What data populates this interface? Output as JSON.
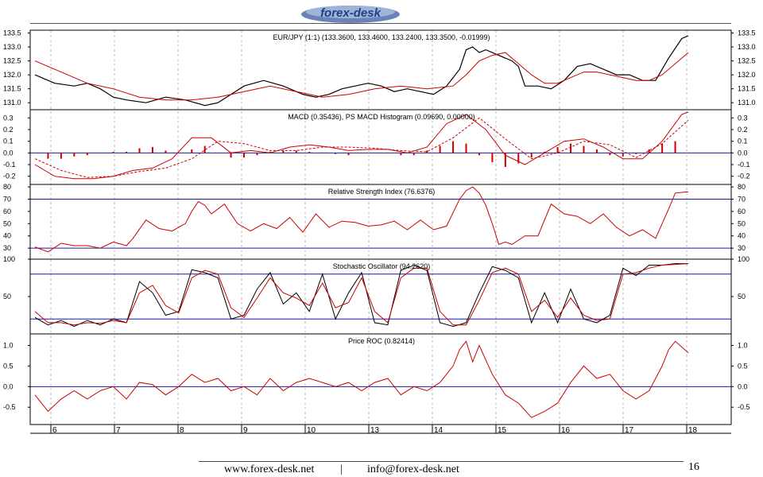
{
  "header": {
    "logo_text": "forex-desk"
  },
  "footer": {
    "website": "www.forex-desk.net",
    "separator": "|",
    "email": "info@forex-desk.net",
    "page_number": "16"
  },
  "colors": {
    "price": "#000000",
    "overlay": "#cc0000",
    "reference": "#1a1aa0",
    "frame": "#000000",
    "grid": "#9a9a9a"
  },
  "x_axis": {
    "ticks": [
      "6",
      "7",
      "8",
      "9",
      "10",
      "13",
      "14",
      "15",
      "16",
      "17",
      "18"
    ]
  },
  "chart_data": [
    {
      "type": "line",
      "title": "EUR/JPY (1:1) (133.3600, 133.4600, 133.2400, 133.3500, -0.01999)",
      "ylim": [
        130.75,
        133.6
      ],
      "yticks": [
        131.0,
        131.5,
        132.0,
        132.5,
        133.0,
        133.5
      ],
      "ytick_labels": [
        "131.0",
        "131.5",
        "132.0",
        "132.5",
        "133.0",
        "133.5"
      ],
      "series": [
        {
          "role": "price",
          "x": [
            0,
            3,
            6,
            8,
            10,
            12,
            14,
            17,
            20,
            23,
            26,
            28,
            30,
            32,
            35,
            38,
            41,
            43,
            45,
            47,
            49,
            51,
            53,
            55,
            57,
            59,
            61,
            63,
            65,
            66,
            67,
            68,
            69,
            71,
            73,
            74,
            75,
            77,
            79,
            81,
            83,
            85,
            87,
            89,
            91,
            93,
            95,
            97,
            99,
            100
          ],
          "y": [
            132.0,
            131.7,
            131.6,
            131.7,
            131.5,
            131.2,
            131.1,
            131.0,
            131.2,
            131.1,
            130.9,
            131.0,
            131.3,
            131.6,
            131.8,
            131.6,
            131.3,
            131.2,
            131.3,
            131.5,
            131.6,
            131.7,
            131.6,
            131.4,
            131.5,
            131.4,
            131.3,
            131.6,
            132.2,
            132.9,
            133.0,
            132.8,
            132.9,
            132.7,
            132.5,
            132.3,
            131.6,
            131.6,
            131.5,
            131.8,
            132.3,
            132.4,
            132.2,
            132.0,
            132.0,
            131.8,
            131.8,
            132.6,
            133.3,
            133.4
          ]
        },
        {
          "role": "moving-average",
          "x": [
            0,
            4,
            8,
            12,
            16,
            20,
            24,
            28,
            32,
            36,
            40,
            44,
            48,
            52,
            56,
            60,
            64,
            66,
            68,
            70,
            72,
            74,
            76,
            78,
            80,
            82,
            84,
            86,
            88,
            90,
            92,
            94,
            96,
            98,
            100
          ],
          "y": [
            132.5,
            132.1,
            131.7,
            131.5,
            131.2,
            131.1,
            131.1,
            131.2,
            131.4,
            131.6,
            131.4,
            131.2,
            131.3,
            131.5,
            131.6,
            131.5,
            131.6,
            132.0,
            132.5,
            132.7,
            132.8,
            132.4,
            132.0,
            131.7,
            131.7,
            131.9,
            132.1,
            132.1,
            132.0,
            131.9,
            131.8,
            131.8,
            132.0,
            132.4,
            132.8
          ]
        }
      ]
    },
    {
      "type": "line",
      "title": "MACD (0.35436), PS MACD Histogram (0.09690, 0.00000)",
      "ylim": [
        -0.27,
        0.37
      ],
      "yticks": [
        -0.2,
        -0.1,
        0.0,
        0.1,
        0.2,
        0.3
      ],
      "ytick_labels": [
        "-0.2",
        "-0.1",
        "0.0",
        "0.1",
        "0.2",
        "0.3"
      ],
      "reference_lines": [
        0.0
      ],
      "series": [
        {
          "role": "macd",
          "x": [
            0,
            3,
            6,
            9,
            12,
            15,
            18,
            21,
            24,
            27,
            30,
            33,
            36,
            39,
            42,
            45,
            48,
            51,
            54,
            57,
            60,
            63,
            66,
            69,
            72,
            75,
            78,
            81,
            84,
            87,
            90,
            93,
            96,
            99,
            100
          ],
          "y": [
            -0.1,
            -0.2,
            -0.22,
            -0.22,
            -0.2,
            -0.15,
            -0.13,
            -0.05,
            0.13,
            0.13,
            0.0,
            0.02,
            0.0,
            0.05,
            0.07,
            0.05,
            0.02,
            0.03,
            0.03,
            0.0,
            0.05,
            0.25,
            0.33,
            0.2,
            -0.02,
            -0.1,
            0.0,
            0.1,
            0.12,
            0.05,
            -0.05,
            -0.05,
            0.1,
            0.33,
            0.35
          ]
        },
        {
          "role": "signal",
          "x": [
            0,
            4,
            8,
            12,
            16,
            20,
            24,
            28,
            32,
            36,
            40,
            44,
            48,
            52,
            56,
            60,
            64,
            68,
            72,
            76,
            80,
            84,
            88,
            92,
            96,
            100
          ],
          "y": [
            -0.05,
            -0.15,
            -0.21,
            -0.2,
            -0.16,
            -0.13,
            -0.05,
            0.1,
            0.08,
            0.02,
            0.02,
            0.05,
            0.05,
            0.04,
            0.02,
            0.01,
            0.13,
            0.3,
            0.12,
            -0.05,
            0.0,
            0.1,
            0.07,
            -0.04,
            0.08,
            0.28
          ]
        },
        {
          "role": "histogram",
          "x": [
            2,
            4,
            6,
            8,
            10,
            12,
            14,
            16,
            18,
            20,
            22,
            24,
            26,
            28,
            30,
            32,
            34,
            36,
            38,
            40,
            42,
            44,
            46,
            48,
            50,
            52,
            54,
            56,
            58,
            60,
            62,
            64,
            66,
            68,
            70,
            72,
            74,
            76,
            78,
            80,
            82,
            84,
            86,
            88,
            90,
            92,
            94,
            96,
            98
          ],
          "y": [
            -0.05,
            -0.05,
            -0.03,
            -0.02,
            0.0,
            0.01,
            0.01,
            0.04,
            0.05,
            0.02,
            0.0,
            0.03,
            0.06,
            0.0,
            -0.04,
            -0.04,
            -0.02,
            0.01,
            0.02,
            0.02,
            0.01,
            0.0,
            -0.01,
            -0.02,
            0.0,
            0.0,
            0.0,
            -0.02,
            -0.02,
            0.02,
            0.06,
            0.1,
            0.08,
            -0.02,
            -0.08,
            -0.12,
            -0.09,
            -0.04,
            0.01,
            0.05,
            0.08,
            0.06,
            0.03,
            -0.02,
            -0.03,
            -0.01,
            0.03,
            0.08,
            0.1
          ]
        }
      ]
    },
    {
      "type": "line",
      "title": "Relative Strength Index (76.6376)",
      "ylim": [
        21,
        82
      ],
      "yticks": [
        30,
        40,
        50,
        60,
        70,
        80
      ],
      "ytick_labels": [
        "30",
        "40",
        "50",
        "60",
        "70",
        "80"
      ],
      "reference_lines": [
        30,
        70
      ],
      "series": [
        {
          "role": "rsi",
          "x": [
            0,
            2,
            4,
            6,
            8,
            10,
            12,
            14,
            15,
            17,
            19,
            21,
            23,
            24,
            25,
            26,
            27,
            29,
            31,
            33,
            35,
            37,
            39,
            41,
            43,
            45,
            47,
            49,
            51,
            53,
            55,
            57,
            59,
            61,
            63,
            65,
            66,
            67,
            68,
            69,
            70,
            71,
            72,
            73,
            75,
            77,
            79,
            81,
            83,
            85,
            87,
            89,
            91,
            93,
            95,
            97,
            98,
            100
          ],
          "y": [
            31,
            27,
            34,
            32,
            32,
            30,
            35,
            32,
            38,
            53,
            46,
            44,
            50,
            60,
            68,
            65,
            58,
            66,
            50,
            44,
            50,
            46,
            55,
            43,
            58,
            47,
            52,
            51,
            48,
            49,
            52,
            45,
            53,
            45,
            48,
            70,
            77,
            80,
            75,
            65,
            50,
            33,
            35,
            33,
            40,
            40,
            66,
            58,
            56,
            50,
            58,
            47,
            40,
            45,
            38,
            62,
            75,
            76
          ]
        }
      ]
    },
    {
      "type": "line",
      "title": "Stochastic Oscillator (94.2620)",
      "ylim": [
        0,
        100
      ],
      "yticks": [
        50,
        100
      ],
      "ytick_labels": [
        "50",
        "100"
      ],
      "reference_lines": [
        20,
        80
      ],
      "series": [
        {
          "role": "k",
          "x": [
            0,
            2,
            4,
            6,
            8,
            10,
            12,
            14,
            16,
            18,
            20,
            22,
            24,
            26,
            28,
            30,
            32,
            34,
            36,
            38,
            40,
            42,
            44,
            46,
            48,
            50,
            52,
            54,
            56,
            58,
            60,
            62,
            64,
            66,
            68,
            70,
            72,
            74,
            76,
            78,
            80,
            82,
            84,
            86,
            88,
            90,
            92,
            94,
            96,
            98,
            100
          ],
          "y": [
            22,
            12,
            18,
            10,
            18,
            12,
            20,
            15,
            70,
            55,
            25,
            30,
            86,
            82,
            75,
            20,
            25,
            60,
            82,
            40,
            55,
            30,
            80,
            20,
            55,
            82,
            15,
            12,
            85,
            92,
            85,
            15,
            10,
            15,
            55,
            90,
            85,
            75,
            15,
            55,
            15,
            60,
            20,
            15,
            25,
            88,
            78,
            92,
            92,
            94,
            94
          ]
        },
        {
          "role": "d",
          "x": [
            0,
            2,
            4,
            6,
            8,
            10,
            12,
            14,
            16,
            18,
            20,
            22,
            24,
            26,
            28,
            30,
            32,
            34,
            36,
            38,
            40,
            42,
            44,
            46,
            48,
            50,
            52,
            54,
            56,
            58,
            60,
            62,
            64,
            66,
            68,
            70,
            72,
            74,
            76,
            78,
            80,
            82,
            84,
            86,
            88,
            90,
            92,
            94,
            96,
            98,
            100
          ],
          "y": [
            30,
            15,
            15,
            12,
            15,
            14,
            18,
            15,
            55,
            65,
            38,
            28,
            75,
            85,
            80,
            35,
            22,
            48,
            75,
            55,
            48,
            38,
            68,
            35,
            42,
            75,
            30,
            15,
            75,
            88,
            88,
            30,
            12,
            12,
            45,
            82,
            88,
            80,
            30,
            45,
            22,
            48,
            25,
            18,
            20,
            80,
            82,
            88,
            92,
            93,
            94
          ]
        }
      ]
    },
    {
      "type": "line",
      "title": "Price ROC (0.82414)",
      "ylim": [
        -0.92,
        1.28
      ],
      "yticks": [
        -0.5,
        0.0,
        0.5,
        1.0
      ],
      "ytick_labels": [
        "-0.5",
        "0.0",
        "0.5",
        "1.0"
      ],
      "reference_lines": [
        0.0
      ],
      "series": [
        {
          "role": "roc",
          "x": [
            0,
            2,
            4,
            6,
            8,
            10,
            12,
            14,
            16,
            18,
            20,
            22,
            24,
            26,
            28,
            30,
            32,
            34,
            36,
            38,
            40,
            42,
            44,
            46,
            48,
            50,
            52,
            54,
            56,
            58,
            60,
            62,
            64,
            65,
            66,
            67,
            68,
            70,
            72,
            74,
            76,
            78,
            80,
            82,
            84,
            86,
            88,
            90,
            92,
            94,
            96,
            97,
            98,
            100
          ],
          "y": [
            -0.2,
            -0.6,
            -0.3,
            -0.1,
            -0.3,
            -0.1,
            0.0,
            -0.3,
            0.1,
            0.05,
            -0.2,
            0.0,
            0.3,
            0.1,
            0.2,
            -0.1,
            0.0,
            -0.2,
            0.2,
            -0.1,
            0.1,
            0.2,
            0.1,
            0.0,
            0.1,
            -0.1,
            0.1,
            0.2,
            -0.2,
            0.0,
            -0.1,
            0.1,
            0.5,
            0.9,
            1.1,
            0.6,
            1.0,
            0.3,
            -0.2,
            -0.4,
            -0.75,
            -0.6,
            -0.4,
            0.1,
            0.5,
            0.2,
            0.3,
            -0.1,
            -0.3,
            -0.1,
            0.5,
            0.9,
            1.1,
            0.82
          ]
        }
      ]
    }
  ]
}
